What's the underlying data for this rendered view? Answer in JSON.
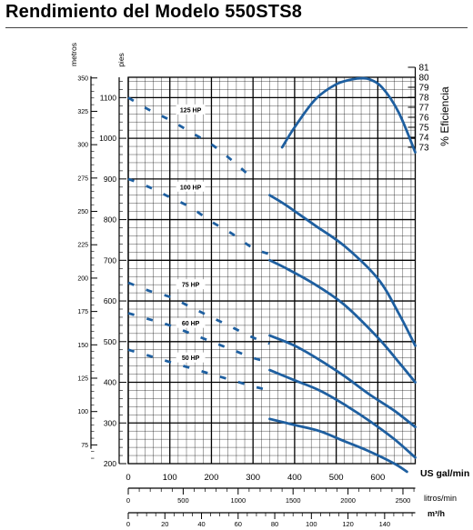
{
  "title": "Rendimiento del Modelo 550STS8",
  "chart_data": {
    "type": "line",
    "title": "Rendimiento del Modelo 550STS8",
    "x_axes": {
      "primary": {
        "label": "US gal/min",
        "range": [
          0,
          690
        ],
        "ticks": [
          0,
          100,
          200,
          300,
          400,
          500,
          600
        ]
      },
      "secondary_lpm": {
        "label": "litros/min",
        "ticks": [
          0,
          500,
          1000,
          1500,
          2000,
          2500
        ]
      },
      "secondary_m3h": {
        "label": "m³/h",
        "ticks": [
          0,
          20,
          40,
          60,
          80,
          100,
          120,
          140
        ]
      }
    },
    "y_axes": {
      "feet": {
        "label": "pies",
        "range": [
          200,
          1150
        ],
        "ticks": [
          200,
          300,
          400,
          500,
          600,
          700,
          800,
          900,
          1000,
          1100
        ]
      },
      "meters": {
        "label": "metros",
        "ticks": [
          75,
          100,
          125,
          150,
          175,
          200,
          225,
          250,
          275,
          300,
          325,
          350
        ]
      },
      "efficiency": {
        "label": "% Eficiencia",
        "ticks": [
          73,
          74,
          75,
          76,
          77,
          78,
          79,
          80,
          81
        ]
      }
    },
    "grid": true,
    "series": [
      {
        "name": "125 HP",
        "label_at": [
          150,
          1070
        ],
        "dashed": [
          [
            0,
            1100
          ],
          [
            50,
            1070
          ],
          [
            100,
            1045
          ],
          [
            150,
            1015
          ],
          [
            200,
            985
          ],
          [
            250,
            945
          ],
          [
            300,
            900
          ]
        ],
        "solid": []
      },
      {
        "name": "100 HP",
        "label_at": [
          150,
          880
        ],
        "dashed": [
          [
            0,
            900
          ],
          [
            50,
            880
          ],
          [
            100,
            855
          ],
          [
            150,
            830
          ],
          [
            200,
            795
          ],
          [
            250,
            765
          ],
          [
            300,
            730
          ],
          [
            340,
            715
          ]
        ],
        "solid": [
          [
            340,
            860
          ],
          [
            380,
            835
          ],
          [
            450,
            785
          ],
          [
            520,
            735
          ],
          [
            600,
            655
          ],
          [
            650,
            570
          ],
          [
            690,
            490
          ]
        ]
      },
      {
        "name": "75 HP",
        "label_at": [
          150,
          640
        ],
        "dashed": [
          [
            0,
            645
          ],
          [
            50,
            625
          ],
          [
            100,
            610
          ],
          [
            150,
            585
          ],
          [
            200,
            560
          ],
          [
            250,
            535
          ],
          [
            300,
            510
          ],
          [
            340,
            495
          ]
        ],
        "solid": [
          [
            340,
            700
          ],
          [
            380,
            680
          ],
          [
            450,
            640
          ],
          [
            520,
            590
          ],
          [
            600,
            510
          ],
          [
            650,
            450
          ],
          [
            690,
            400
          ]
        ]
      },
      {
        "name": "60 HP",
        "label_at": [
          150,
          545
        ],
        "dashed": [
          [
            0,
            570
          ],
          [
            50,
            555
          ],
          [
            100,
            540
          ],
          [
            150,
            520
          ],
          [
            200,
            500
          ],
          [
            250,
            480
          ],
          [
            300,
            460
          ],
          [
            340,
            450
          ]
        ],
        "solid": [
          [
            340,
            515
          ],
          [
            400,
            490
          ],
          [
            460,
            455
          ],
          [
            520,
            415
          ],
          [
            580,
            370
          ],
          [
            640,
            330
          ],
          [
            690,
            290
          ]
        ]
      },
      {
        "name": "50 HP",
        "label_at": [
          150,
          460
        ],
        "dashed": [
          [
            0,
            480
          ],
          [
            50,
            465
          ],
          [
            100,
            450
          ],
          [
            150,
            435
          ],
          [
            200,
            420
          ],
          [
            250,
            405
          ],
          [
            300,
            390
          ],
          [
            340,
            380
          ]
        ],
        "solid": [
          [
            340,
            430
          ],
          [
            400,
            405
          ],
          [
            460,
            380
          ],
          [
            520,
            345
          ],
          [
            580,
            305
          ],
          [
            640,
            260
          ],
          [
            690,
            215
          ]
        ]
      },
      {
        "name": "",
        "dashed": [],
        "solid": [
          [
            340,
            310
          ],
          [
            400,
            295
          ],
          [
            460,
            280
          ],
          [
            520,
            255
          ],
          [
            580,
            230
          ],
          [
            640,
            200
          ],
          [
            670,
            180
          ]
        ]
      }
    ],
    "efficiency_curve": {
      "x": [
        370,
        400,
        450,
        500,
        540,
        560,
        580,
        610,
        650,
        690
      ],
      "y": [
        73.0,
        75.0,
        77.8,
        79.3,
        79.8,
        79.9,
        79.8,
        79.0,
        76.5,
        72.5
      ]
    }
  }
}
